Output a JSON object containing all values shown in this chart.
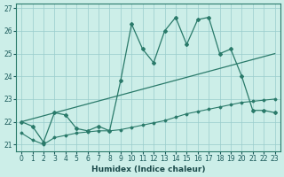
{
  "xlabel": "Humidex (Indice chaleur)",
  "bg_color": "#cceee8",
  "grid_color": "#99cccc",
  "line_color": "#2a7a6a",
  "xlim": [
    -0.5,
    23.5
  ],
  "ylim": [
    20.7,
    27.2
  ],
  "xticks": [
    0,
    1,
    2,
    3,
    4,
    5,
    6,
    7,
    8,
    9,
    10,
    11,
    12,
    13,
    14,
    15,
    16,
    17,
    18,
    19,
    20,
    21,
    22,
    23
  ],
  "yticks": [
    21,
    22,
    23,
    24,
    25,
    26,
    27
  ],
  "line1_x": [
    0,
    1,
    2,
    3,
    4,
    5,
    6,
    7,
    8,
    9,
    10,
    11,
    12,
    13,
    14,
    15,
    16,
    17,
    18,
    19,
    20,
    21,
    22,
    23
  ],
  "line1_y": [
    22.0,
    21.8,
    21.1,
    22.4,
    22.3,
    21.7,
    21.6,
    21.8,
    21.6,
    23.8,
    26.3,
    25.2,
    24.6,
    26.0,
    26.6,
    25.4,
    26.5,
    26.6,
    25.0,
    25.2,
    24.0,
    22.5,
    22.5,
    22.4
  ],
  "line2_x": [
    0,
    1,
    2,
    3,
    4,
    5,
    6,
    7,
    8,
    9,
    10,
    11,
    12,
    13,
    14,
    15,
    16,
    17,
    18,
    19,
    20,
    21,
    22,
    23
  ],
  "line2_y": [
    21.5,
    21.2,
    21.0,
    21.3,
    21.4,
    21.5,
    21.55,
    21.6,
    21.6,
    21.65,
    21.75,
    21.85,
    21.95,
    22.05,
    22.2,
    22.35,
    22.45,
    22.55,
    22.65,
    22.75,
    22.85,
    22.9,
    22.95,
    23.0
  ],
  "line3_x": [
    0,
    23
  ],
  "line3_y": [
    22.0,
    25.0
  ]
}
